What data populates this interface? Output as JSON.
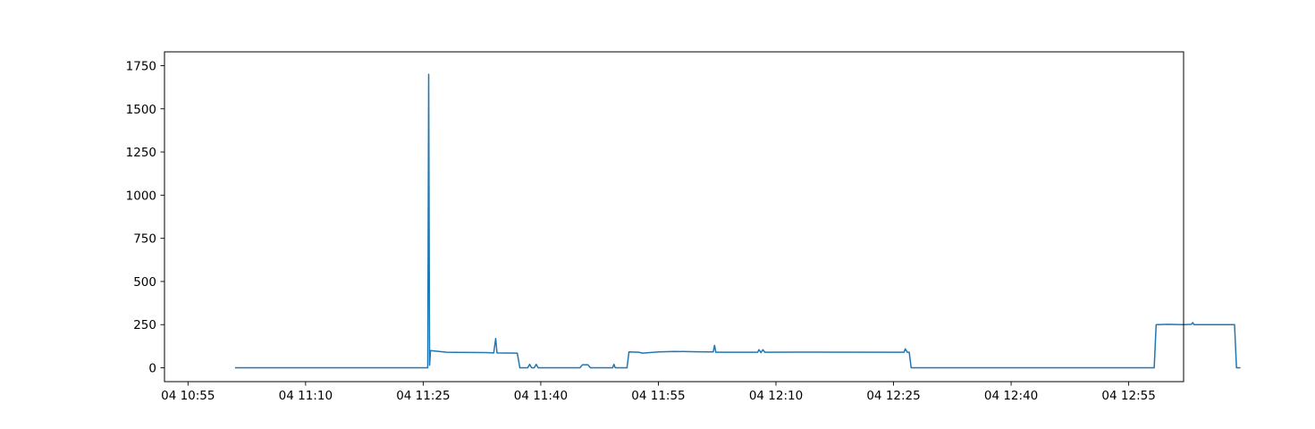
{
  "chart_data": {
    "type": "line",
    "title": "",
    "xlabel": "",
    "ylabel": "",
    "xlim": [
      "04 10:52",
      "04 13:02"
    ],
    "ylim": [
      -80,
      1830
    ],
    "grid": false,
    "legend": "none",
    "x_ticks": [
      {
        "label": "04 10:55",
        "value": "04 10:55"
      },
      {
        "label": "04 11:10",
        "value": "04 11:10"
      },
      {
        "label": "04 11:25",
        "value": "04 11:25"
      },
      {
        "label": "04 11:40",
        "value": "04 11:40"
      },
      {
        "label": "04 11:55",
        "value": "04 11:55"
      },
      {
        "label": "04 12:10",
        "value": "04 12:10"
      },
      {
        "label": "04 12:25",
        "value": "04 12:25"
      },
      {
        "label": "04 12:40",
        "value": "04 12:40"
      },
      {
        "label": "04 12:55",
        "value": "04 12:55"
      }
    ],
    "y_ticks": [
      {
        "label": "0",
        "value": 0
      },
      {
        "label": "250",
        "value": 250
      },
      {
        "label": "500",
        "value": 500
      },
      {
        "label": "750",
        "value": 750
      },
      {
        "label": "1000",
        "value": 1000
      },
      {
        "label": "1250",
        "value": 1250
      },
      {
        "label": "1500",
        "value": 1500
      },
      {
        "label": "1750",
        "value": 1750
      }
    ],
    "series": [
      {
        "color": "#1f77b4",
        "points": [
          [
            "04 11:01:00",
            0
          ],
          [
            "04 11:25:35",
            0
          ],
          [
            "04 11:25:42",
            1700
          ],
          [
            "04 11:25:49",
            15
          ],
          [
            "04 11:25:56",
            100
          ],
          [
            "04 11:28:00",
            90
          ],
          [
            "04 11:33:00",
            88
          ],
          [
            "04 11:34:00",
            86
          ],
          [
            "04 11:34:15",
            170
          ],
          [
            "04 11:34:25",
            86
          ],
          [
            "04 11:37:00",
            85
          ],
          [
            "04 11:37:20",
            0
          ],
          [
            "04 11:38:20",
            0
          ],
          [
            "04 11:38:35",
            20
          ],
          [
            "04 11:38:50",
            0
          ],
          [
            "04 11:39:10",
            0
          ],
          [
            "04 11:39:25",
            20
          ],
          [
            "04 11:39:40",
            0
          ],
          [
            "04 11:45:00",
            0
          ],
          [
            "04 11:45:20",
            18
          ],
          [
            "04 11:46:00",
            18
          ],
          [
            "04 11:46:20",
            0
          ],
          [
            "04 11:49:10",
            0
          ],
          [
            "04 11:49:20",
            20
          ],
          [
            "04 11:49:30",
            0
          ],
          [
            "04 11:51:00",
            0
          ],
          [
            "04 11:51:15",
            92
          ],
          [
            "04 11:52:30",
            90
          ],
          [
            "04 11:53:00",
            85
          ],
          [
            "04 11:55:00",
            92
          ],
          [
            "04 11:57:00",
            95
          ],
          [
            "04 12:00:00",
            93
          ],
          [
            "04 12:02:00",
            92
          ],
          [
            "04 12:02:10",
            130
          ],
          [
            "04 12:02:20",
            90
          ],
          [
            "04 12:06:00",
            90
          ],
          [
            "04 12:07:40",
            90
          ],
          [
            "04 12:07:50",
            105
          ],
          [
            "04 12:08:05",
            88
          ],
          [
            "04 12:08:20",
            105
          ],
          [
            "04 12:08:35",
            90
          ],
          [
            "04 12:15:00",
            91
          ],
          [
            "04 12:25:00",
            90
          ],
          [
            "04 12:26:20",
            90
          ],
          [
            "04 12:26:30",
            110
          ],
          [
            "04 12:26:45",
            90
          ],
          [
            "04 12:27:00",
            90
          ],
          [
            "04 12:27:15",
            0
          ],
          [
            "04 12:58:15",
            0
          ],
          [
            "04 12:58:30",
            250
          ],
          [
            "04 13:00:00",
            252
          ],
          [
            "04 13:02:00",
            250
          ],
          [
            "04 13:03:00",
            252
          ],
          [
            "04 13:03:10",
            262
          ],
          [
            "04 13:03:20",
            250
          ],
          [
            "04 13:08:30",
            250
          ],
          [
            "04 13:08:45",
            0
          ],
          [
            "04 13:09:15",
            0
          ]
        ]
      }
    ]
  }
}
